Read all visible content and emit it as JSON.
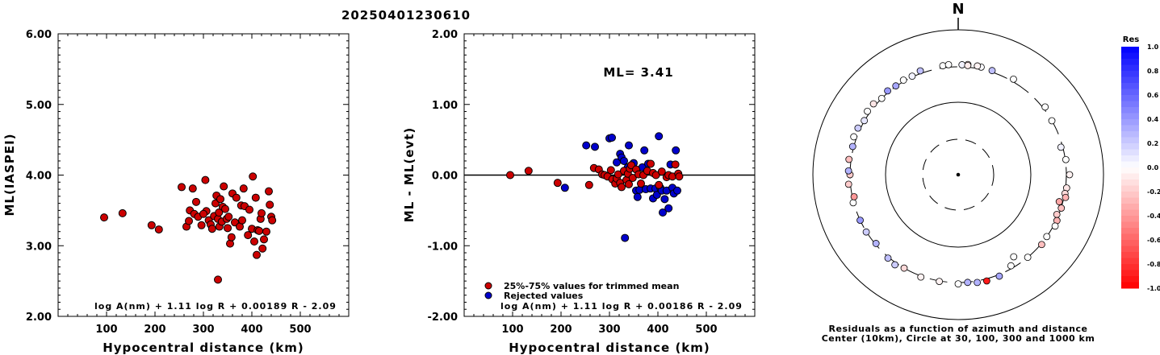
{
  "title": "20250401230610",
  "chart_data": [
    {
      "type": "scatter",
      "xlabel": "Hypocentral distance (km)",
      "ylabel": "ML(IASPEI)",
      "xlim": [
        0,
        600
      ],
      "ylim": [
        2.0,
        6.0
      ],
      "xticks": [
        "100",
        "200",
        "300",
        "400",
        "500"
      ],
      "yticks": [
        "2.00",
        "3.00",
        "4.00",
        "5.00",
        "6.00"
      ],
      "formula": "log A(nm) + 1.11 log R + 0.00189 R - 2.09",
      "points": [
        [
          95,
          3.4
        ],
        [
          133,
          3.46
        ],
        [
          193,
          3.29
        ],
        [
          208,
          3.23
        ],
        [
          255,
          3.83
        ],
        [
          265,
          3.27
        ],
        [
          272,
          3.5
        ],
        [
          278,
          3.81
        ],
        [
          281,
          3.45
        ],
        [
          285,
          3.62
        ],
        [
          289,
          3.41
        ],
        [
          296,
          3.29
        ],
        [
          304,
          3.93
        ],
        [
          306,
          3.49
        ],
        [
          311,
          3.36
        ],
        [
          315,
          3.3
        ],
        [
          318,
          3.24
        ],
        [
          322,
          3.42
        ],
        [
          325,
          3.6
        ],
        [
          327,
          3.71
        ],
        [
          330,
          3.38
        ],
        [
          332,
          3.47
        ],
        [
          333,
          3.27
        ],
        [
          335,
          3.66
        ],
        [
          338,
          3.34
        ],
        [
          340,
          3.55
        ],
        [
          342,
          3.84
        ],
        [
          345,
          3.52
        ],
        [
          348,
          3.38
        ],
        [
          350,
          3.25
        ],
        [
          352,
          3.41
        ],
        [
          355,
          3.03
        ],
        [
          358,
          3.12
        ],
        [
          360,
          3.74
        ],
        [
          365,
          3.33
        ],
        [
          368,
          3.68
        ],
        [
          375,
          3.27
        ],
        [
          378,
          3.57
        ],
        [
          380,
          3.36
        ],
        [
          383,
          3.81
        ],
        [
          385,
          3.56
        ],
        [
          392,
          3.15
        ],
        [
          395,
          3.51
        ],
        [
          400,
          3.24
        ],
        [
          402,
          3.98
        ],
        [
          405,
          3.06
        ],
        [
          408,
          3.68
        ],
        [
          410,
          2.87
        ],
        [
          412,
          3.22
        ],
        [
          415,
          3.21
        ],
        [
          418,
          3.38
        ],
        [
          420,
          3.46
        ],
        [
          422,
          2.96
        ],
        [
          425,
          3.09
        ],
        [
          430,
          3.2
        ],
        [
          435,
          3.77
        ],
        [
          437,
          3.58
        ],
        [
          440,
          3.41
        ],
        [
          442,
          3.36
        ],
        [
          330,
          2.52
        ],
        [
          300,
          3.45
        ],
        [
          270,
          3.35
        ]
      ]
    },
    {
      "type": "scatter",
      "xlabel": "Hypocentral distance (km)",
      "ylabel": "ML - ML(evt)",
      "xlim": [
        0,
        600
      ],
      "ylim": [
        -2.0,
        2.0
      ],
      "xticks": [
        "100",
        "200",
        "300",
        "400",
        "500"
      ],
      "yticks": [
        "-2.00",
        "-1.00",
        "0.00",
        "1.00",
        "2.00"
      ],
      "annotation": "ML= 3.41",
      "legend": [
        "25%-75% values for trimmed mean",
        "Rejected values"
      ],
      "legend_colors": [
        "#cc0000",
        "#0000cc"
      ],
      "formula": "log A(nm) + 1.11 log R + 0.00186 R - 2.09",
      "trimmed": [
        [
          95,
          0.0
        ],
        [
          133,
          0.06
        ],
        [
          193,
          -0.11
        ],
        [
          258,
          -0.14
        ],
        [
          268,
          0.1
        ],
        [
          278,
          0.08
        ],
        [
          285,
          0.01
        ],
        [
          290,
          0.0
        ],
        [
          296,
          -0.02
        ],
        [
          303,
          0.07
        ],
        [
          306,
          -0.06
        ],
        [
          312,
          -0.12
        ],
        [
          315,
          -0.05
        ],
        [
          318,
          0.01
        ],
        [
          322,
          -0.11
        ],
        [
          325,
          -0.17
        ],
        [
          330,
          0.06
        ],
        [
          335,
          -0.07
        ],
        [
          338,
          0.02
        ],
        [
          340,
          -0.13
        ],
        [
          342,
          0.09
        ],
        [
          345,
          0.14
        ],
        [
          348,
          -0.04
        ],
        [
          355,
          0.08
        ],
        [
          360,
          0.01
        ],
        [
          365,
          -0.12
        ],
        [
          370,
          0.0
        ],
        [
          378,
          0.06
        ],
        [
          385,
          0.16
        ],
        [
          390,
          0.03
        ],
        [
          396,
          0.0
        ],
        [
          402,
          -0.14
        ],
        [
          408,
          0.05
        ],
        [
          418,
          -0.03
        ],
        [
          422,
          0.0
        ],
        [
          430,
          -0.02
        ],
        [
          436,
          0.15
        ],
        [
          442,
          0.02
        ],
        [
          444,
          -0.02
        ]
      ],
      "rejected": [
        [
          208,
          -0.18
        ],
        [
          252,
          0.42
        ],
        [
          270,
          0.4
        ],
        [
          300,
          0.52
        ],
        [
          305,
          0.53
        ],
        [
          315,
          0.18
        ],
        [
          322,
          0.3
        ],
        [
          325,
          0.25
        ],
        [
          330,
          0.2
        ],
        [
          332,
          -0.89
        ],
        [
          338,
          0.11
        ],
        [
          340,
          0.42
        ],
        [
          350,
          0.17
        ],
        [
          355,
          -0.22
        ],
        [
          358,
          -0.31
        ],
        [
          362,
          -0.21
        ],
        [
          368,
          0.11
        ],
        [
          372,
          0.35
        ],
        [
          375,
          -0.2
        ],
        [
          380,
          0.16
        ],
        [
          385,
          -0.19
        ],
        [
          390,
          -0.33
        ],
        [
          395,
          -0.19
        ],
        [
          398,
          -0.28
        ],
        [
          402,
          0.55
        ],
        [
          405,
          -0.18
        ],
        [
          408,
          -0.22
        ],
        [
          410,
          -0.53
        ],
        [
          414,
          -0.34
        ],
        [
          418,
          -0.22
        ],
        [
          422,
          -0.47
        ],
        [
          426,
          0.15
        ],
        [
          430,
          -0.18
        ],
        [
          433,
          -0.26
        ],
        [
          437,
          0.35
        ],
        [
          440,
          -0.22
        ]
      ]
    },
    {
      "type": "scatter",
      "subtype": "polar",
      "north_label": "N",
      "caption_line1": "Residuals as a function of azimuth and distance",
      "caption_line2": "Center (10km), Circle at 30, 100, 300 and 1000 km",
      "colorbar_title": "Res",
      "colorbar_ticks": [
        "1.0",
        "0.8",
        "0.6",
        "0.4",
        "0.2",
        "0.0",
        "-0.2",
        "-0.4",
        "-0.6",
        "-0.8",
        "-1.0"
      ],
      "points": [
        [
          12,
          340,
          0.02
        ],
        [
          10,
          348,
          -0.05
        ],
        [
          5,
          352,
          -0.1
        ],
        [
          2,
          340,
          0.05
        ],
        [
          5,
          333,
          -0.08
        ],
        [
          -8,
          340,
          0.0
        ],
        [
          -5,
          348,
          0.0
        ],
        [
          18,
          330,
          0.25
        ],
        [
          30,
          345,
          0.0
        ],
        [
          52,
          340,
          0.0
        ],
        [
          60,
          300,
          0.0
        ],
        [
          75,
          290,
          0.05
        ],
        [
          82,
          310,
          0.0
        ],
        [
          90,
          360,
          -0.05
        ],
        [
          97,
          320,
          -0.1
        ],
        [
          100,
          305,
          -0.15
        ],
        [
          102,
          330,
          -0.3
        ],
        [
          105,
          280,
          -0.35
        ],
        [
          108,
          305,
          -0.25
        ],
        [
          112,
          290,
          -0.2
        ],
        [
          115,
          315,
          -0.3
        ],
        [
          118,
          330,
          0.0
        ],
        [
          125,
          300,
          0.0
        ],
        [
          130,
          315,
          -0.25
        ],
        [
          140,
          300,
          0.0
        ],
        [
          146,
          250,
          0.0
        ],
        [
          150,
          285,
          0.0
        ],
        [
          158,
          330,
          0.35
        ],
        [
          165,
          340,
          -0.9
        ],
        [
          170,
          330,
          0.3
        ],
        [
          175,
          305,
          0.3
        ],
        [
          180,
          325,
          0.0
        ],
        [
          190,
          310,
          -0.05
        ],
        [
          200,
          320,
          -0.05
        ],
        [
          210,
          300,
          -0.15
        ],
        [
          215,
          340,
          0.2
        ],
        [
          220,
          320,
          0.25
        ],
        [
          230,
          295,
          0.3
        ],
        [
          238,
          305,
          0.2
        ],
        [
          245,
          300,
          0.4
        ],
        [
          255,
          310,
          0.0
        ],
        [
          258,
          290,
          -0.4
        ],
        [
          265,
          335,
          -0.2
        ],
        [
          270,
          300,
          -0.2
        ],
        [
          272,
          330,
          0.3
        ],
        [
          278,
          340,
          -0.25
        ],
        [
          285,
          320,
          0.3
        ],
        [
          290,
          355,
          0.0
        ],
        [
          295,
          345,
          0.2
        ],
        [
          300,
          305,
          0.1
        ],
        [
          305,
          350,
          0.0
        ],
        [
          310,
          345,
          -0.1
        ],
        [
          315,
          300,
          0.0
        ],
        [
          320,
          330,
          0.4
        ],
        [
          325,
          310,
          0.35
        ],
        [
          330,
          325,
          0.0
        ],
        [
          335,
          315,
          0.05
        ],
        [
          340,
          350,
          0.25
        ]
      ]
    }
  ]
}
